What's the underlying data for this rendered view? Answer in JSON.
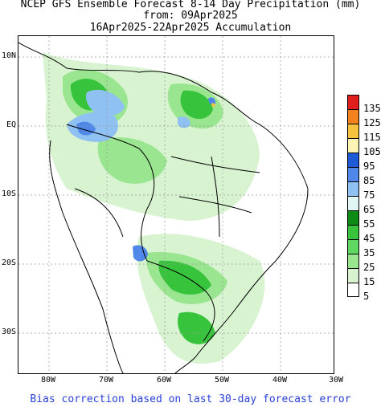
{
  "title": {
    "line1": "NCEP GFS Ensemble Forecast 8-14 Day Precipitation (mm)",
    "line2": "from: 09Apr2025",
    "line3": "16Apr2025-22Apr2025 Accumulation"
  },
  "axes": {
    "lat_labels": [
      "10N",
      "EQ",
      "10S",
      "20S",
      "30S"
    ],
    "lon_labels": [
      "80W",
      "70W",
      "60W",
      "50W",
      "40W",
      "30W"
    ]
  },
  "legend": {
    "labels": [
      "135",
      "125",
      "115",
      "105",
      "95",
      "85",
      "75",
      "65",
      "55",
      "45",
      "35",
      "25",
      "15",
      "5"
    ],
    "colors": [
      "#e01e1e",
      "#f2831c",
      "#f7c23d",
      "#fdf3b4",
      "#1f5bd6",
      "#4f88e8",
      "#8fc1f3",
      "#dff6f4",
      "#0f8a14",
      "#37c43c",
      "#5fd862",
      "#9ae590",
      "#d7f3cf",
      "#ffffff"
    ]
  },
  "footer": "Bias correction based on last 30-day forecast error"
}
